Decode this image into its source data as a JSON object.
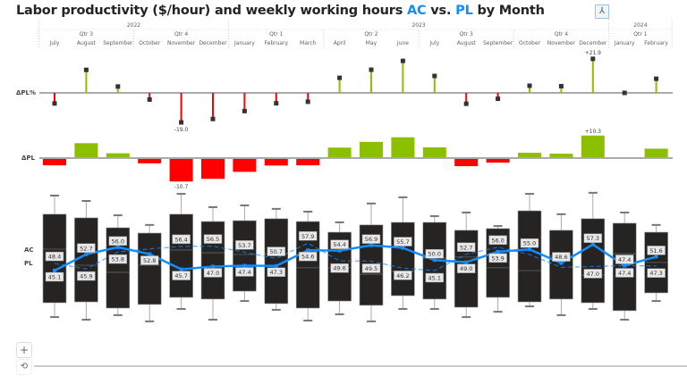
{
  "title": {
    "prefix": "Labor productivity ($/hour) and weekly working hours ",
    "ac": "AC",
    "mid": " vs. ",
    "pl": "PL",
    "suffix": " by Month"
  },
  "colors": {
    "ac": "#118DFF",
    "pl": "#118DFF",
    "positive": "#8CBF00",
    "negative": "#FF0000",
    "box": "#252423"
  },
  "icons": {
    "drill": "hierarchy-icon",
    "zoom_in": "plus-icon",
    "reset": "reset-icon"
  },
  "controls": {
    "zoom_in": "+",
    "reset": "⟲"
  },
  "header": {
    "years": [
      {
        "label": "2022",
        "span": 6
      },
      {
        "label": "2023",
        "span": 12
      },
      {
        "label": "2024",
        "span": 2
      }
    ],
    "quarters": [
      {
        "label": "Qtr 3",
        "span": 3
      },
      {
        "label": "Qtr 4",
        "span": 3
      },
      {
        "label": "Qtr 1",
        "span": 3
      },
      {
        "label": "Qtr 2",
        "span": 3
      },
      {
        "label": "Qtr 3",
        "span": 3
      },
      {
        "label": "Qtr 4",
        "span": 3
      },
      {
        "label": "Qtr 1",
        "span": 2
      }
    ]
  },
  "row_labels": {
    "dpl_pct": "ΔPL%",
    "dpl": "ΔPL",
    "ac": "AC",
    "pl": "PL"
  },
  "chart_data": {
    "type": "bar",
    "categories": [
      "July",
      "August",
      "September",
      "October",
      "November",
      "December",
      "January",
      "February",
      "March",
      "April",
      "May",
      "June",
      "July",
      "August",
      "September",
      "October",
      "November",
      "December",
      "January",
      "February"
    ],
    "series": [
      {
        "name": "AC",
        "type": "line",
        "values": [
          45.1,
          52.7,
          56.0,
          52.8,
          45.7,
          47.0,
          47.4,
          47.3,
          54.6,
          54.4,
          56.9,
          55.7,
          50.0,
          49.0,
          53.9,
          55.0,
          48.6,
          57.3,
          47.4,
          51.6
        ],
        "labels": [
          "45.1",
          "52.7",
          "56.0",
          "52.8",
          "45.7",
          "47.0",
          "47.4",
          "47.3",
          "54.6",
          "54.4",
          "56.9",
          "55.7",
          "50.0",
          "49.0",
          "53.9",
          "55.0",
          "48.6",
          "57.3",
          "47.4",
          "51.6"
        ]
      },
      {
        "name": "PL",
        "type": "dashed-line",
        "values": [
          48.4,
          45.9,
          53.8,
          55.2,
          56.4,
          56.5,
          53.7,
          50.7,
          57.9,
          49.6,
          49.5,
          46.2,
          45.1,
          52.7,
          56.0,
          52.6,
          46.6,
          47.0,
          47.4,
          47.3
        ],
        "labels": [
          "48.4",
          "45.9",
          "53.8",
          "",
          "56.4",
          "56.5",
          "53.7",
          "50.7",
          "57.9",
          "49.6",
          "49.5",
          "46.2",
          "45.1",
          "52.7",
          "56.0",
          "",
          "",
          "47.0",
          "47.4",
          "47.3"
        ]
      },
      {
        "name": "ΔPL",
        "type": "bar",
        "values": [
          -3.3,
          6.8,
          2.2,
          -2.4,
          -10.7,
          -9.5,
          -6.3,
          -3.4,
          -3.3,
          4.8,
          7.4,
          9.5,
          4.9,
          -3.7,
          -2.1,
          2.4,
          2.0,
          10.3,
          0.0,
          4.3
        ],
        "labels": {
          "4": "-10.7",
          "17": "+10.3"
        }
      },
      {
        "name": "ΔPL%",
        "type": "needle",
        "values": [
          -6.8,
          14.8,
          4.1,
          -4.3,
          -19.0,
          -16.8,
          -11.7,
          -6.7,
          -5.7,
          9.7,
          14.9,
          20.6,
          10.9,
          -7.0,
          -3.8,
          4.6,
          4.3,
          21.9,
          0.0,
          9.1
        ],
        "labels": {
          "4": "-19.0",
          "17": "+21.9"
        }
      }
    ],
    "boxplot": {
      "min": [
        23.4,
        22.2,
        24.3,
        21.4,
        27.2,
        22.2,
        30.9,
        26.8,
        21.8,
        24.7,
        21.4,
        27.2,
        27.2,
        23.4,
        25.9,
        28.4,
        24.3,
        27.2,
        22.2,
        30.9
      ],
      "q1": [
        30.1,
        30.5,
        27.6,
        29.3,
        32.6,
        31.8,
        35.5,
        29.7,
        27.6,
        30.9,
        28.9,
        33.4,
        31.8,
        28.0,
        32.6,
        30.5,
        31.8,
        30.1,
        26.4,
        34.7
      ],
      "median": [
        55.1,
        47.6,
        44.3,
        47.6,
        54.7,
        53.4,
        52.6,
        53.0,
        46.4,
        46.4,
        43.4,
        44.7,
        50.9,
        51.4,
        46.4,
        45.1,
        51.8,
        43.0,
        53.0,
        48.9
      ],
      "q3": [
        71.4,
        69.7,
        65.1,
        62.6,
        71.4,
        68.0,
        68.4,
        69.3,
        68.0,
        63.0,
        66.4,
        67.6,
        67.6,
        63.9,
        64.7,
        73.0,
        63.9,
        69.3,
        67.2,
        63.0
      ],
      "max": [
        80.1,
        77.6,
        70.9,
        66.4,
        80.9,
        74.7,
        75.5,
        73.9,
        72.6,
        67.6,
        76.4,
        79.3,
        70.5,
        72.2,
        65.9,
        80.9,
        71.4,
        81.4,
        72.2,
        66.4
      ]
    }
  }
}
